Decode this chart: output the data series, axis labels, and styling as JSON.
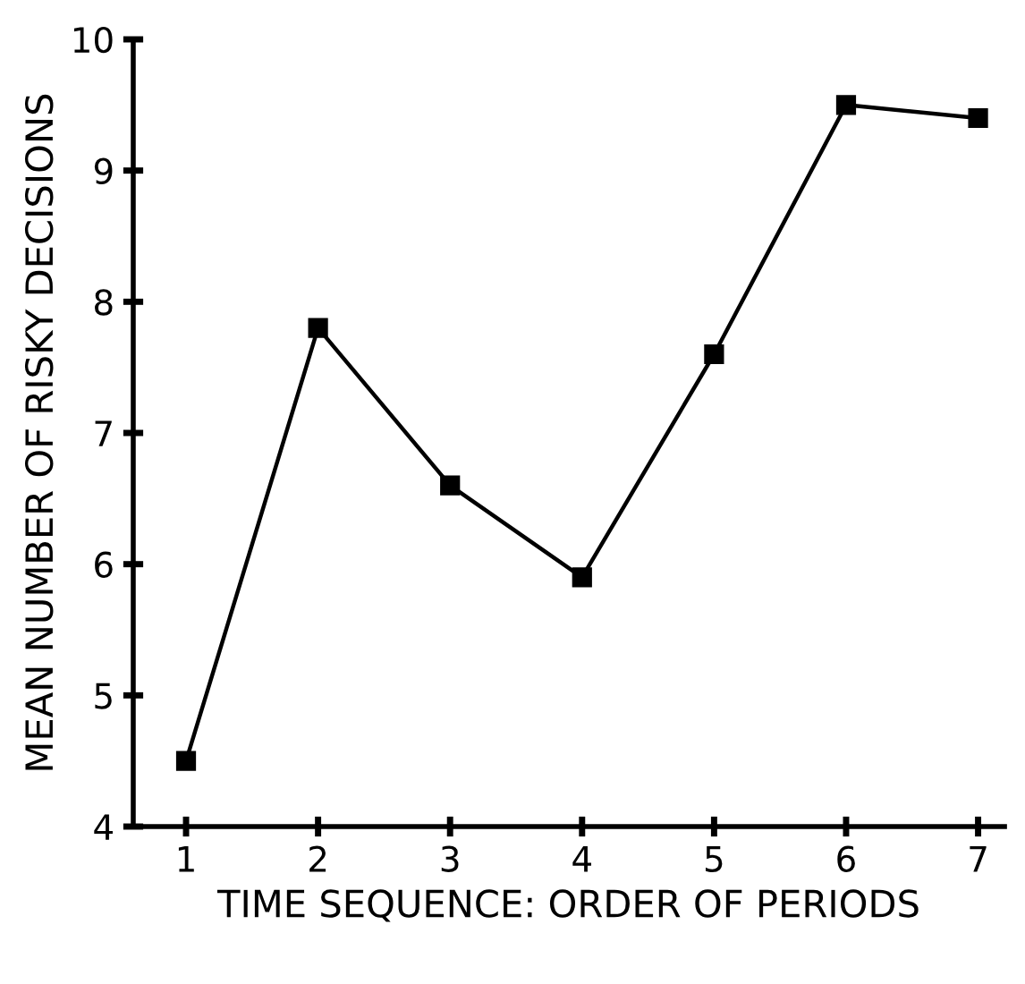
{
  "chart_data": {
    "type": "line",
    "xlabel": "TIME SEQUENCE: ORDER OF PERIODS",
    "ylabel": "MEAN NUMBER OF RISKY DECISIONS",
    "x": [
      1,
      2,
      3,
      4,
      5,
      6,
      7
    ],
    "series": [
      {
        "color": "#000000",
        "values": [
          4.5,
          7.8,
          6.6,
          5.9,
          7.6,
          9.5,
          9.4
        ]
      }
    ],
    "xlim": [
      0.6,
      7.2
    ],
    "xticks": [
      1,
      2,
      3,
      4,
      5,
      6,
      7
    ],
    "ylim": [
      4,
      10
    ],
    "yticks": [
      4,
      5,
      6,
      7,
      8,
      9,
      10
    ],
    "grid": false,
    "legend": false,
    "marker": "square",
    "line_style": "solid"
  }
}
